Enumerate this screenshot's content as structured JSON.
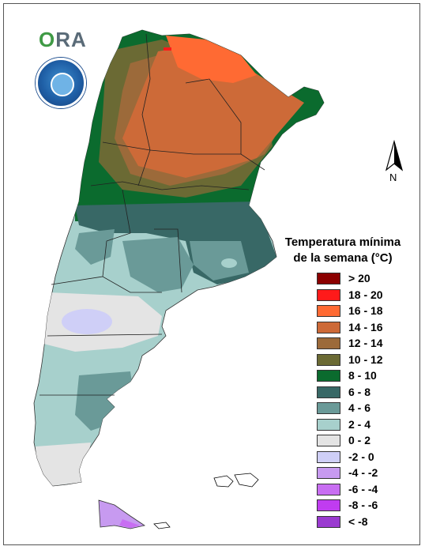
{
  "logo": {
    "text_o": "O",
    "text_rest": "RA"
  },
  "north": {
    "label": "N"
  },
  "legend": {
    "title_line1": "Temperatura mínima",
    "title_line2": "de la semana (°C)",
    "classes": [
      {
        "label": "> 20",
        "color": "#8b0000"
      },
      {
        "label": "18 - 20",
        "color": "#ff1a1a"
      },
      {
        "label": "16 - 18",
        "color": "#ff6a33"
      },
      {
        "label": "14 - 16",
        "color": "#cd6a38"
      },
      {
        "label": "12 - 14",
        "color": "#9c6a3a"
      },
      {
        "label": "10 - 12",
        "color": "#6b6a34"
      },
      {
        "label": "8 - 10",
        "color": "#0b6b2e"
      },
      {
        "label": "6 - 8",
        "color": "#386866"
      },
      {
        "label": "4 - 6",
        "color": "#6a9a98"
      },
      {
        "label": "2 - 4",
        "color": "#a7d0cc"
      },
      {
        "label": "0 - 2",
        "color": "#e4e4e4"
      },
      {
        "label": "-2 - 0",
        "color": "#cfcff7"
      },
      {
        "label": "-4 - -2",
        "color": "#c79af0"
      },
      {
        "label": "-6 - -4",
        "color": "#c86ef2"
      },
      {
        "label": "-8 - -6",
        "color": "#c03cf0"
      },
      {
        "label": "< -8",
        "color": "#9a3ad0"
      }
    ]
  }
}
